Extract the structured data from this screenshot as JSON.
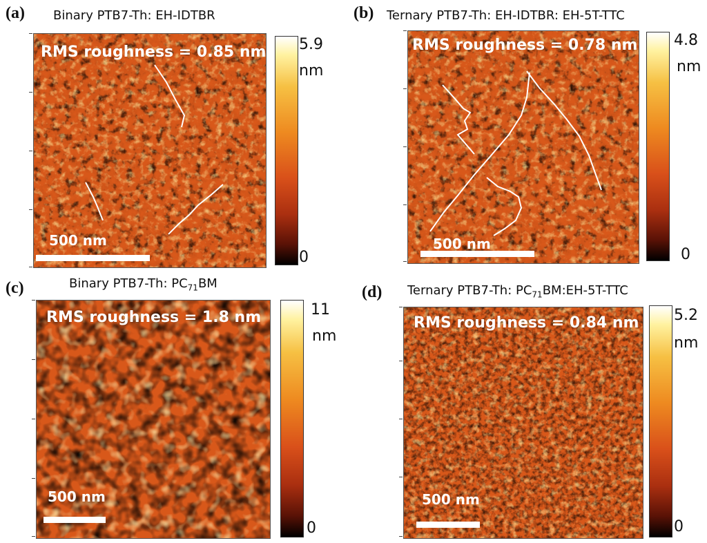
{
  "panels": [
    {
      "letter": "(a)",
      "title": "Binary PTB7-Th: EH-IDTBR",
      "rms": "RMS roughness = 0.85 nm",
      "scalebar": "500 nm",
      "cbar_max": "5.9",
      "cbar_unit": "nm",
      "cbar_min": "0"
    },
    {
      "letter": "(b)",
      "title": "Ternary  PTB7-Th: EH-IDTBR: EH-5T-TTC",
      "rms": "RMS roughness = 0.78 nm",
      "scalebar": "500 nm",
      "cbar_max": "4.8",
      "cbar_unit": "nm",
      "cbar_min": "0"
    },
    {
      "letter": "(c)",
      "title_prefix": "Binary PTB7-Th: PC",
      "title_sub": "71",
      "title_suffix": "BM",
      "rms": "RMS roughness = 1.8 nm",
      "scalebar": "500 nm",
      "cbar_max": "11",
      "cbar_unit": "nm",
      "cbar_min": "0"
    },
    {
      "letter": "(d)",
      "title_prefix": "Ternary PTB7-Th: PC",
      "title_sub": "71",
      "title_suffix": "BM:EH-5T-TTC",
      "rms": "RMS roughness = 0.84 nm",
      "scalebar": "500 nm",
      "cbar_max": "5.2",
      "cbar_unit": "nm",
      "cbar_min": "0"
    }
  ],
  "colors": {
    "afm_base": "#d8581a",
    "trace": "#ffffff",
    "text": "#111111"
  }
}
